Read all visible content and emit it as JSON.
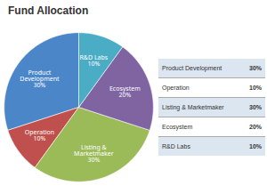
{
  "chart_data": {
    "type": "pie",
    "title": "Fund Allocation",
    "categories": [
      "Product\nDevelopment\n30%",
      "Operation\n10%",
      "Listing &\nMarketmaker\n30%",
      "Ecosystem\n20%",
      "R&D Labs\n10%"
    ],
    "values": [
      30,
      10,
      30,
      20,
      10
    ],
    "colors": [
      "#4a86c8",
      "#c0504d",
      "#9bbb59",
      "#8064a2",
      "#4bacc6"
    ],
    "table": {
      "categories": [
        "Product Development",
        "Operation",
        "Listing & Marketmaker",
        "Ecosystem",
        "R&D Labs"
      ],
      "values": [
        30,
        10,
        30,
        20,
        10
      ],
      "value_labels": [
        "30%",
        "10%",
        "30%",
        "20%",
        "10%"
      ],
      "colors": [
        "#dce6f1",
        "#ffffff",
        "#dce6f1",
        "#ffffff",
        "#dce6f1"
      ]
    }
  }
}
